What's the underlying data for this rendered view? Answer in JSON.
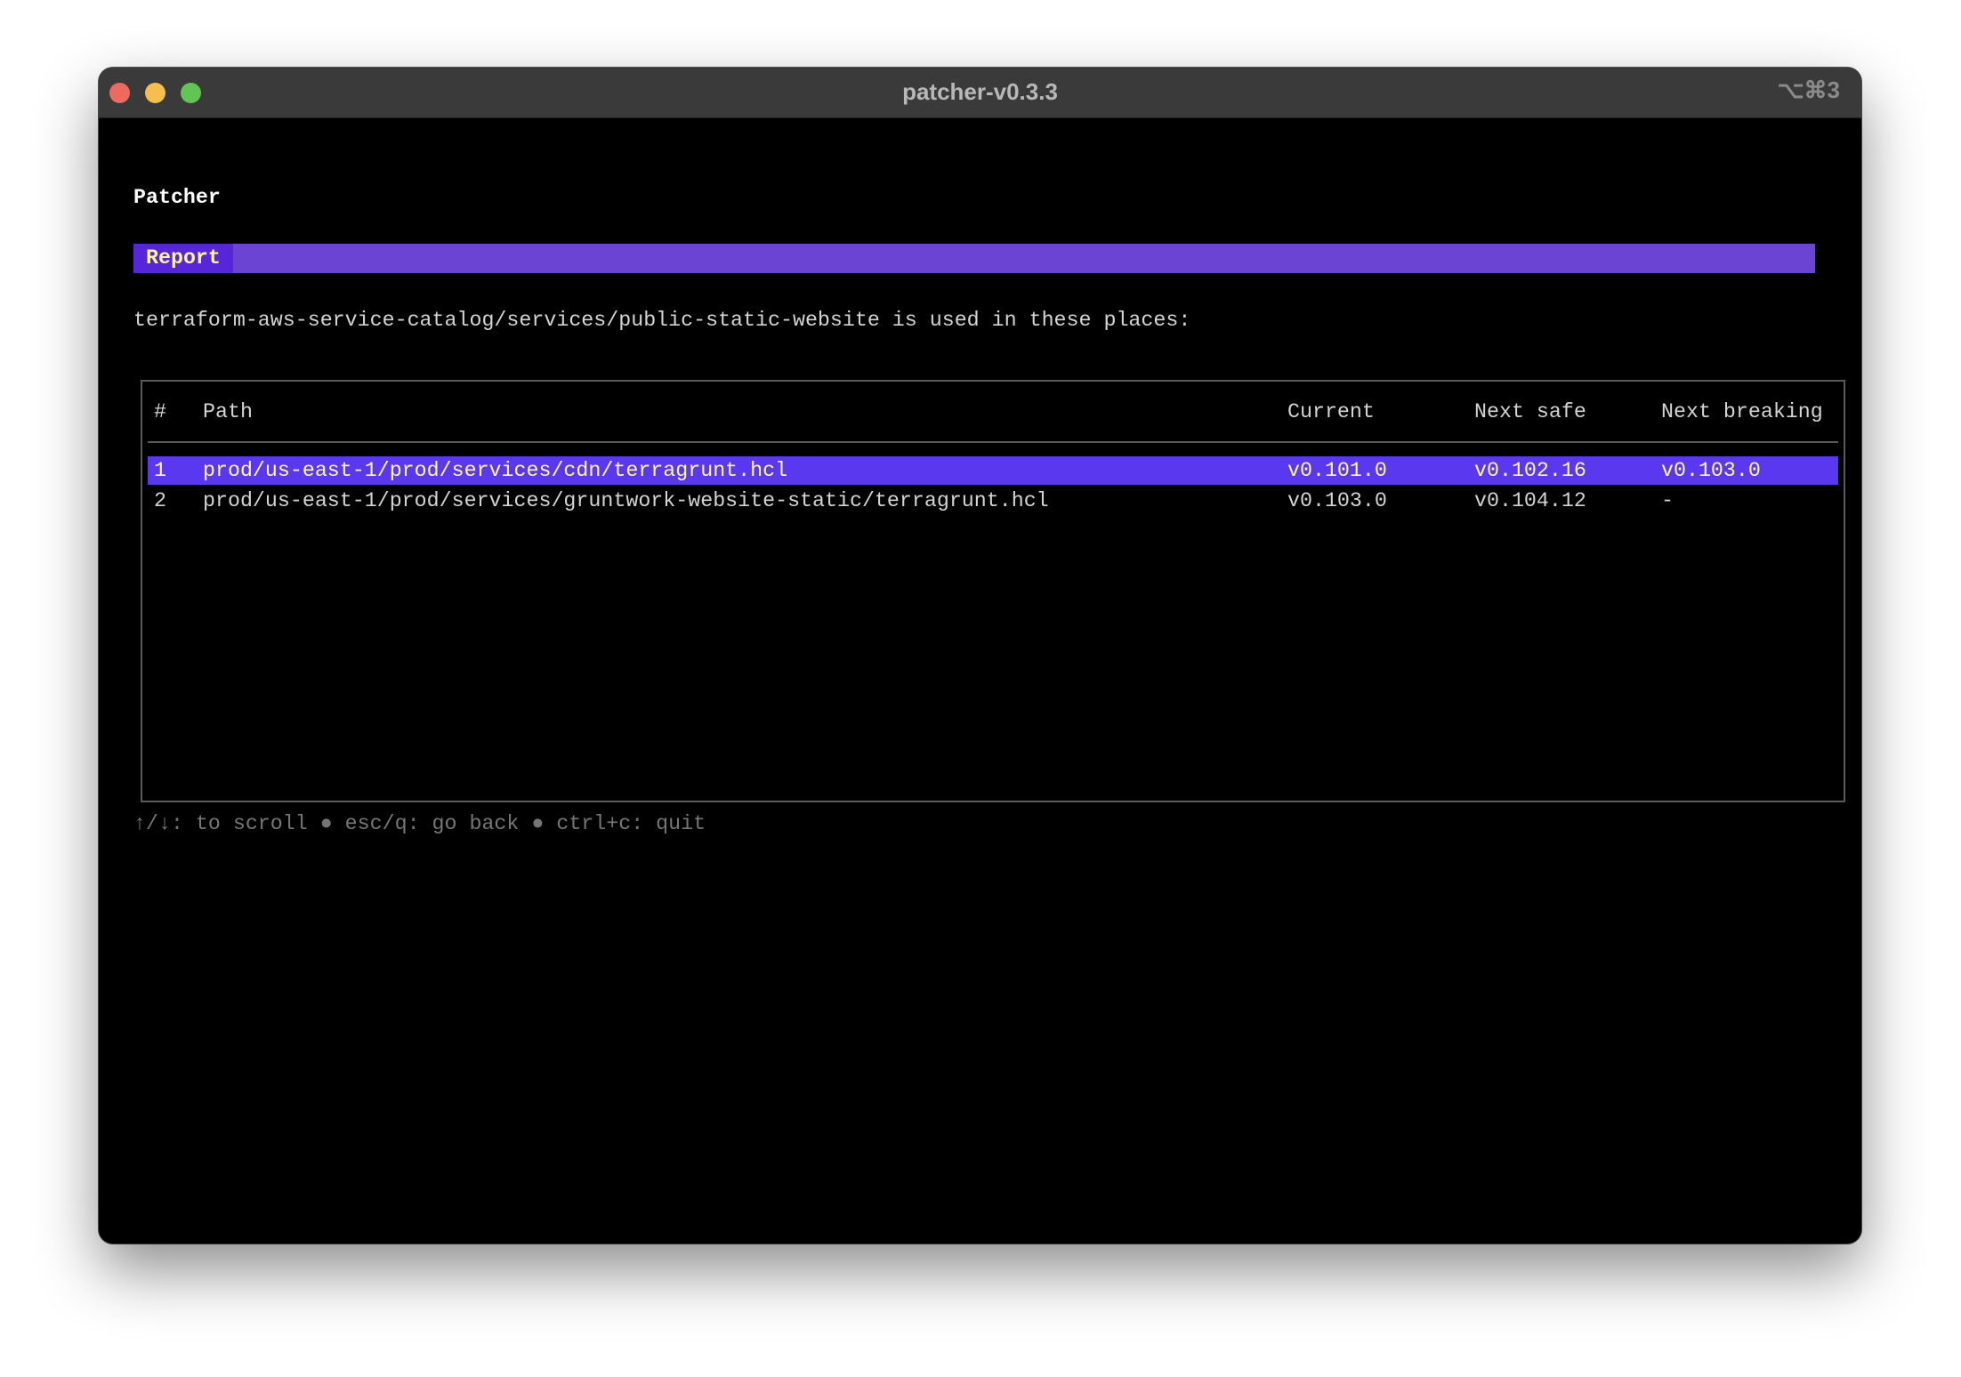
{
  "window": {
    "title": "patcher-v0.3.3",
    "shortcut": "⌥⌘3",
    "traffic_lights": {
      "close": "#ee6a5f",
      "minimize": "#f5bf4f",
      "zoom": "#61c554"
    }
  },
  "app": {
    "name": "Patcher",
    "tab_label": "Report",
    "description": "terraform-aws-service-catalog/services/public-static-website is used in these places:"
  },
  "table": {
    "columns": [
      "#",
      "Path",
      "Current",
      "Next safe",
      "Next breaking"
    ],
    "rows": [
      {
        "num": "1",
        "path": "prod/us-east-1/prod/services/cdn/terragrunt.hcl",
        "current": "v0.101.0",
        "next_safe": "v0.102.16",
        "next_breaking": "v0.103.0",
        "selected": true
      },
      {
        "num": "2",
        "path": "prod/us-east-1/prod/services/gruntwork-website-static/terragrunt.hcl",
        "current": "v0.103.0",
        "next_safe": "v0.104.12",
        "next_breaking": "-",
        "selected": false
      }
    ]
  },
  "footer": {
    "help": "↑/↓: to scroll ● esc/q: go back ● ctrl+c: quit"
  },
  "colors": {
    "accent": "#6c44d4",
    "selection": "#5a38f0",
    "highlight_text": "#fff79a"
  }
}
